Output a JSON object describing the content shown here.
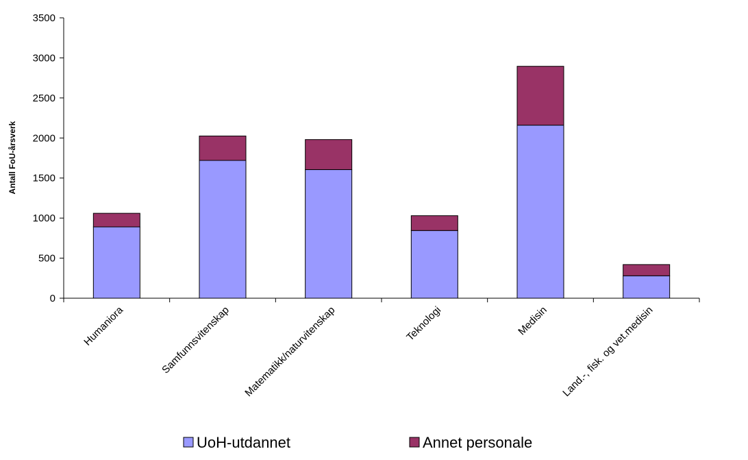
{
  "chart_data": {
    "type": "bar",
    "stacked": true,
    "categories": [
      "Humaniora",
      "Samfunnsvitenskap",
      "Matematikk/naturvitenskap",
      "Teknologi",
      "Medisin",
      "Land.-, fisk. og vet.medisin"
    ],
    "series": [
      {
        "name": "UoH-utdannet",
        "color": "#9999ff",
        "values": [
          890,
          1720,
          1605,
          845,
          2160,
          280
        ]
      },
      {
        "name": "Annet personale",
        "color": "#993366",
        "values": [
          170,
          305,
          375,
          185,
          735,
          140
        ]
      }
    ],
    "title": "",
    "xlabel": "",
    "ylabel": "Antall FoU-årsverk",
    "ylim": [
      0,
      3500
    ],
    "yticks": [
      0,
      500,
      1000,
      1500,
      2000,
      2500,
      3000,
      3500
    ],
    "grid": false,
    "legend_position": "bottom"
  }
}
